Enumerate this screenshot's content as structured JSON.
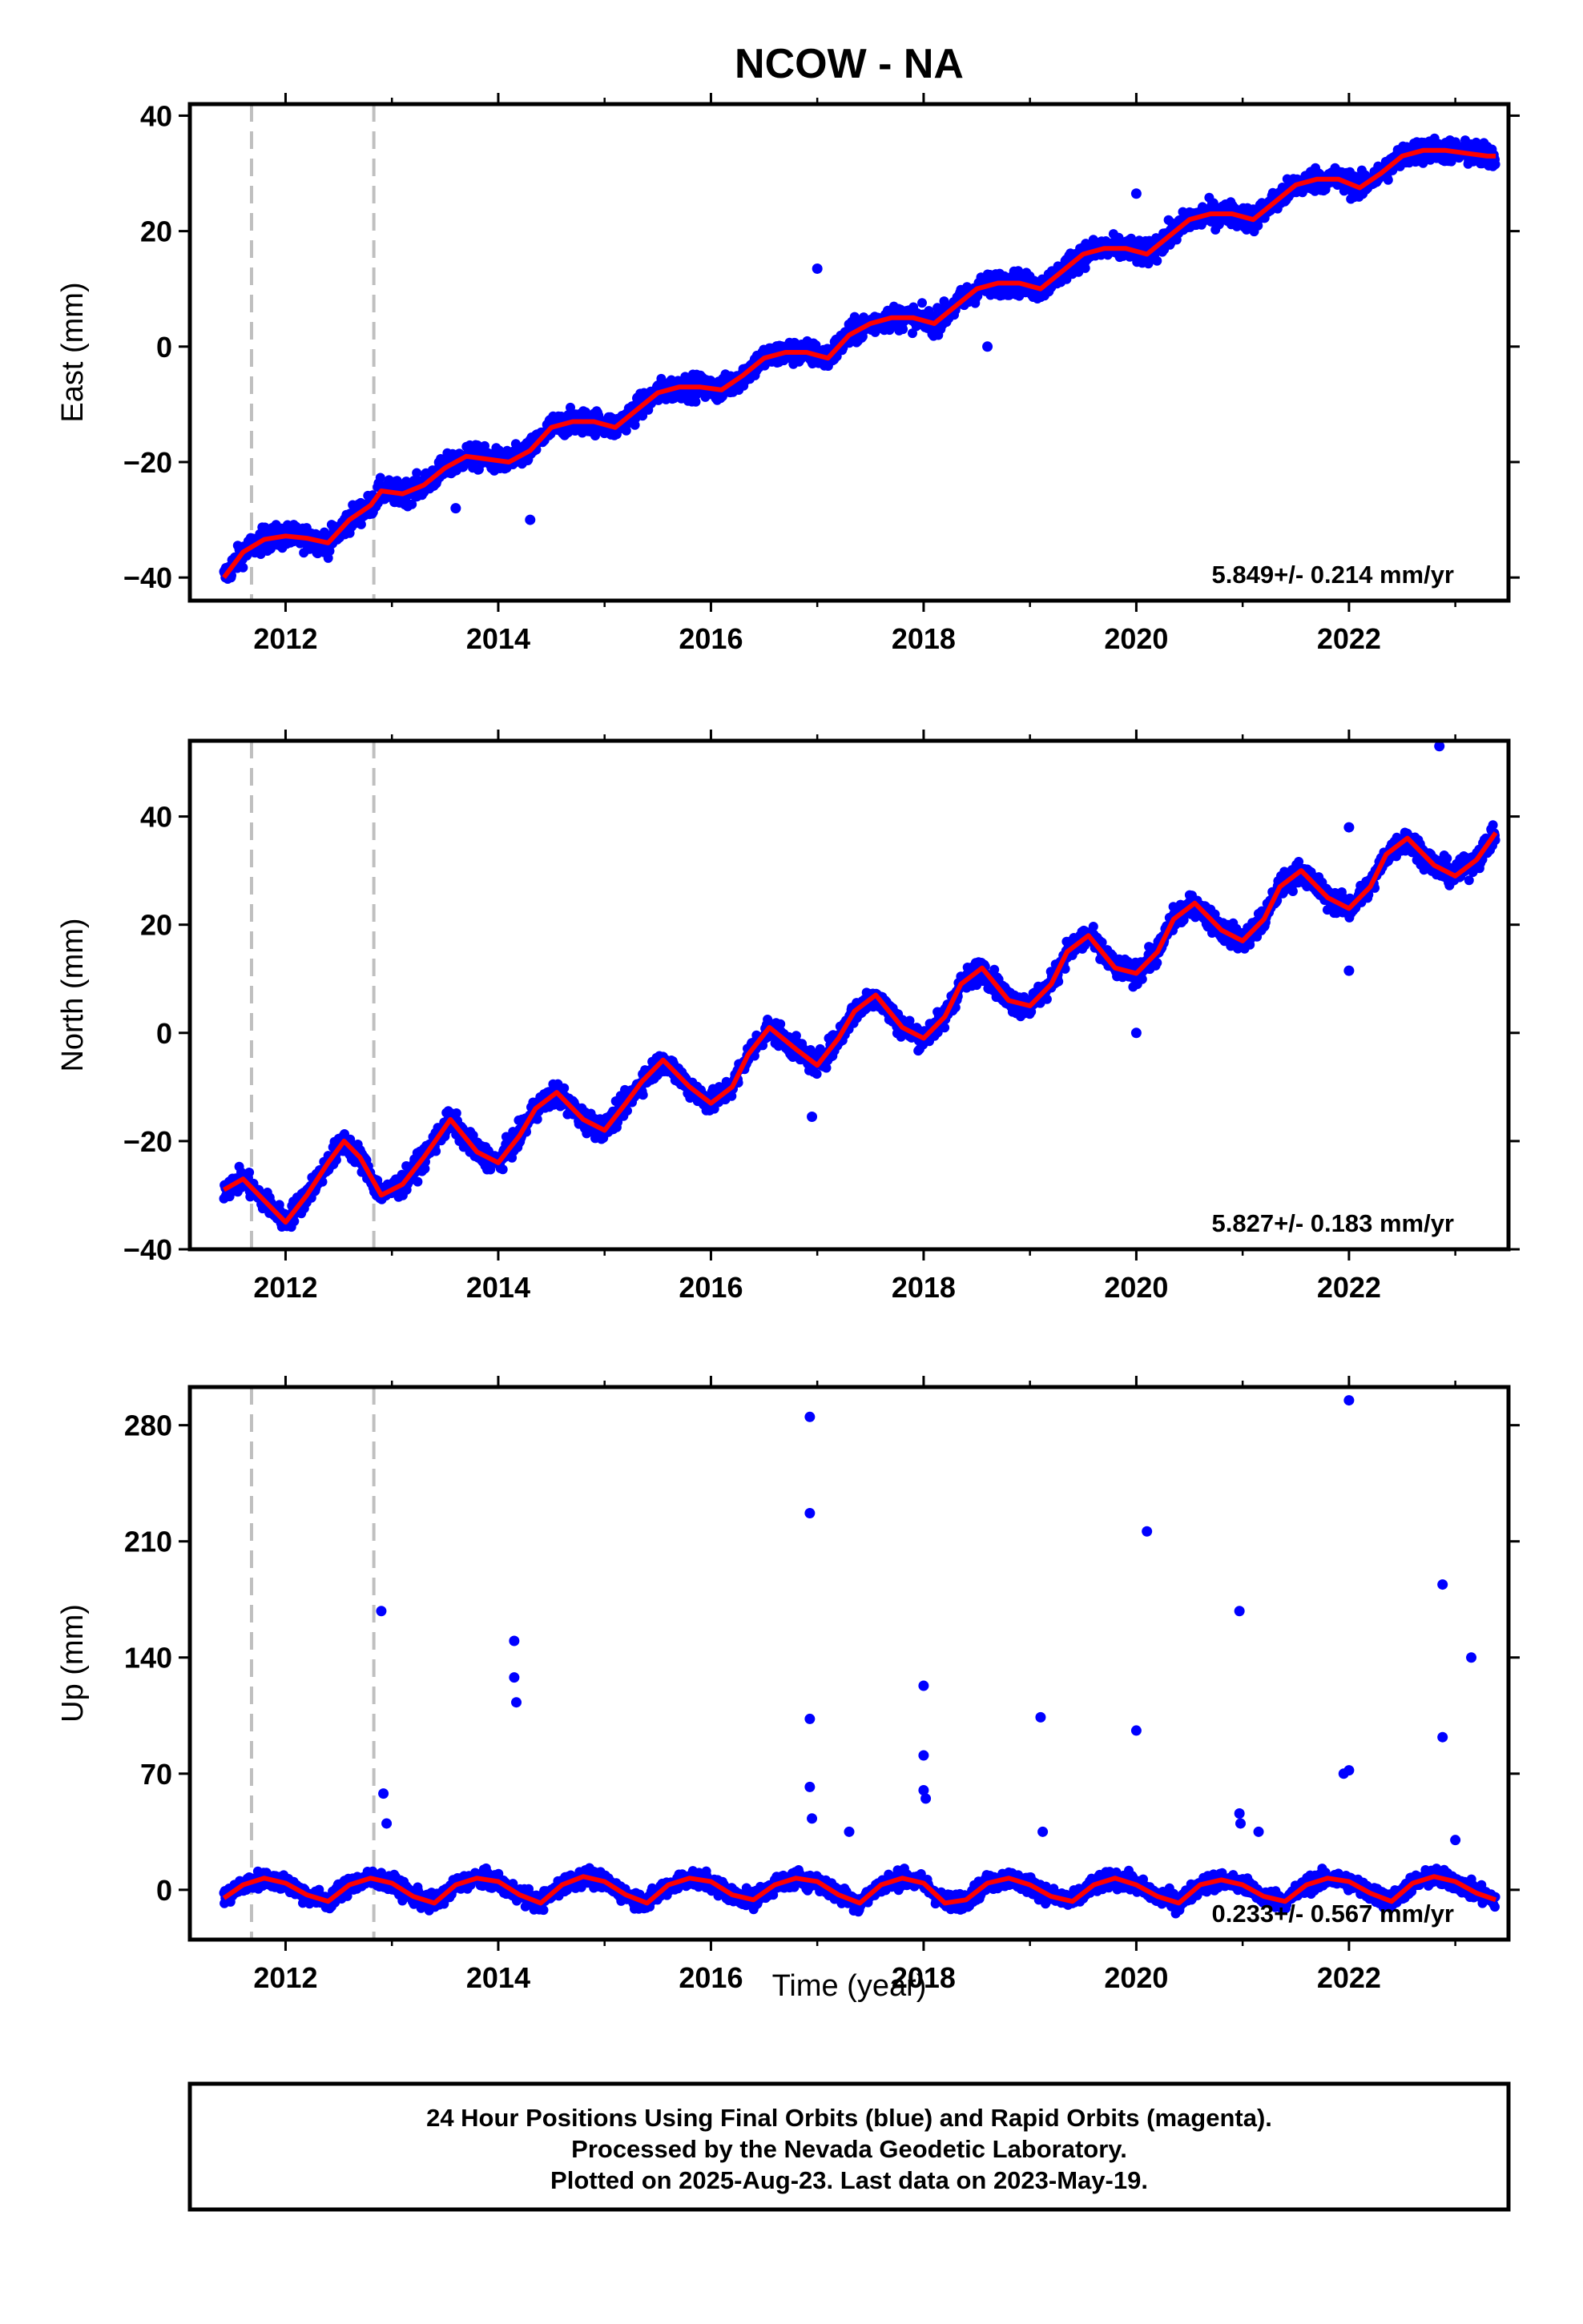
{
  "title": "NCOW - NA",
  "xlabel": "Time (year)",
  "caption": [
    "24 Hour Positions Using Final Orbits (blue) and Rapid Orbits (magenta).",
    "Processed by the Nevada Geodetic Laboratory.",
    "Plotted on 2025-Aug-23. Last data on 2023-May-19."
  ],
  "colors": {
    "points": "#0000ff",
    "model": "#ff0000",
    "offsets": "#bfbfbf",
    "frame": "#000000"
  },
  "chart_data": [
    {
      "type": "scatter",
      "ylabel": "East (mm)",
      "xlim": [
        2011.1,
        2023.5
      ],
      "ylim": [
        -44,
        42
      ],
      "xticks": [
        "2012",
        "2014",
        "2016",
        "2018",
        "2020",
        "2022"
      ],
      "yticks": [
        "−40",
        "−20",
        "0",
        "20",
        "40"
      ],
      "rate_label": "5.849+/- 0.214 mm/yr",
      "offset_lines": [
        2011.68,
        2012.83
      ],
      "trend": {
        "rate": 5.849,
        "value_at_2011_4": -40.0
      },
      "series": [
        {
          "name": "Final Orbits",
          "x": [
            2011.42,
            2011.6,
            2011.8,
            2012.0,
            2012.2,
            2012.4,
            2012.6,
            2012.8,
            2012.9,
            2013.1,
            2013.3,
            2013.5,
            2013.7,
            2013.9,
            2014.1,
            2014.3,
            2014.5,
            2014.7,
            2014.9,
            2015.1,
            2015.3,
            2015.5,
            2015.7,
            2015.9,
            2016.1,
            2016.3,
            2016.5,
            2016.7,
            2016.9,
            2017.1,
            2017.3,
            2017.5,
            2017.7,
            2017.9,
            2018.1,
            2018.3,
            2018.5,
            2018.7,
            2018.9,
            2019.1,
            2019.3,
            2019.5,
            2019.7,
            2019.9,
            2020.1,
            2020.3,
            2020.5,
            2020.7,
            2020.9,
            2021.1,
            2021.3,
            2021.5,
            2021.7,
            2021.9,
            2022.1,
            2022.3,
            2022.5,
            2022.7,
            2022.9,
            2023.1,
            2023.3,
            2023.38
          ],
          "y": [
            -40.0,
            -35.6,
            -33.4,
            -32.8,
            -33.2,
            -34.0,
            -30.0,
            -27.5,
            -25.0,
            -25.5,
            -24.0,
            -21.0,
            -19.0,
            -19.5,
            -20.0,
            -18.0,
            -14.0,
            -13.0,
            -13.0,
            -14.0,
            -11.0,
            -8.0,
            -7.0,
            -7.0,
            -7.5,
            -5.0,
            -2.0,
            -1.0,
            -1.0,
            -2.0,
            2.0,
            4.0,
            5.0,
            5.0,
            4.0,
            7.0,
            10.0,
            11.0,
            11.0,
            10.0,
            13.0,
            16.0,
            17.0,
            17.0,
            16.0,
            19.0,
            22.0,
            23.0,
            23.0,
            22.0,
            25.0,
            28.0,
            29.0,
            29.0,
            27.5,
            30.0,
            33.0,
            34.0,
            34.0,
            33.5,
            33.0,
            33.0
          ]
        }
      ],
      "outliers": [
        {
          "x": 2017.0,
          "y": 13.5
        },
        {
          "x": 2020.0,
          "y": 26.5
        },
        {
          "x": 2018.6,
          "y": 0.0
        },
        {
          "x": 2013.6,
          "y": -28.0
        },
        {
          "x": 2014.3,
          "y": -30.0
        }
      ]
    },
    {
      "type": "scatter",
      "ylabel": "North (mm)",
      "xlim": [
        2011.1,
        2023.5
      ],
      "ylim": [
        -40,
        54
      ],
      "xticks": [
        "2012",
        "2014",
        "2016",
        "2018",
        "2020",
        "2022"
      ],
      "yticks": [
        "−40",
        "−20",
        "0",
        "20",
        "40"
      ],
      "rate_label": "5.827+/- 0.183 mm/yr",
      "offset_lines": [
        2011.68,
        2012.83
      ],
      "trend": {
        "rate": 5.827,
        "value_at_2011_4": -31.0
      },
      "series": [
        {
          "name": "Final Orbits",
          "x": [
            2011.42,
            2011.6,
            2011.8,
            2012.0,
            2012.2,
            2012.4,
            2012.55,
            2012.7,
            2012.9,
            2013.1,
            2013.3,
            2013.55,
            2013.8,
            2014.0,
            2014.2,
            2014.35,
            2014.55,
            2014.8,
            2015.0,
            2015.2,
            2015.35,
            2015.55,
            2015.8,
            2016.0,
            2016.2,
            2016.35,
            2016.55,
            2016.8,
            2017.0,
            2017.2,
            2017.35,
            2017.55,
            2017.8,
            2018.0,
            2018.2,
            2018.35,
            2018.55,
            2018.8,
            2019.0,
            2019.2,
            2019.35,
            2019.55,
            2019.8,
            2020.0,
            2020.2,
            2020.35,
            2020.55,
            2020.8,
            2021.0,
            2021.2,
            2021.35,
            2021.55,
            2021.8,
            2022.0,
            2022.2,
            2022.35,
            2022.55,
            2022.8,
            2023.0,
            2023.2,
            2023.38
          ],
          "y": [
            -29.0,
            -27.0,
            -31.0,
            -35.0,
            -30.0,
            -24.0,
            -20.0,
            -23.0,
            -30.0,
            -28.0,
            -23.0,
            -16.0,
            -22.0,
            -24.0,
            -19.0,
            -14.0,
            -11.0,
            -16.0,
            -18.0,
            -13.0,
            -9.0,
            -5.0,
            -10.0,
            -13.0,
            -10.0,
            -4.0,
            1.0,
            -3.0,
            -6.0,
            -1.0,
            4.0,
            7.0,
            1.0,
            -1.0,
            3.0,
            9.0,
            12.0,
            6.0,
            5.0,
            9.0,
            15.0,
            18.0,
            12.0,
            11.0,
            15.0,
            21.0,
            24.0,
            19.0,
            17.0,
            21.0,
            27.0,
            30.0,
            25.0,
            23.0,
            27.0,
            33.0,
            36.0,
            31.0,
            29.0,
            32.0,
            37.0
          ]
        }
      ],
      "outliers": [
        {
          "x": 2022.85,
          "y": 53.0
        },
        {
          "x": 2022.0,
          "y": 11.5
        },
        {
          "x": 2022.0,
          "y": 38.0
        },
        {
          "x": 2020.0,
          "y": 0.0
        },
        {
          "x": 2016.95,
          "y": -15.5
        }
      ]
    },
    {
      "type": "scatter",
      "ylabel": "Up (mm)",
      "xlim": [
        2011.1,
        2023.5
      ],
      "ylim": [
        -30,
        303
      ],
      "xticks": [
        "2012",
        "2014",
        "2016",
        "2018",
        "2020",
        "2022"
      ],
      "yticks": [
        "0",
        "70",
        "140",
        "210",
        "280"
      ],
      "rate_label": "0.233+/- 0.567 mm/yr",
      "offset_lines": [
        2011.68,
        2012.83
      ],
      "trend": {
        "rate": 0.233,
        "value_at_2011_4": -3.0
      },
      "series": [
        {
          "name": "Final Orbits",
          "x": [
            2011.42,
            2011.6,
            2011.8,
            2012.0,
            2012.2,
            2012.4,
            2012.6,
            2012.8,
            2013.0,
            2013.2,
            2013.4,
            2013.6,
            2013.8,
            2014.0,
            2014.2,
            2014.4,
            2014.6,
            2014.8,
            2015.0,
            2015.2,
            2015.4,
            2015.6,
            2015.8,
            2016.0,
            2016.2,
            2016.4,
            2016.6,
            2016.8,
            2017.0,
            2017.2,
            2017.4,
            2017.6,
            2017.8,
            2018.0,
            2018.2,
            2018.4,
            2018.6,
            2018.8,
            2019.0,
            2019.2,
            2019.4,
            2019.6,
            2019.8,
            2020.0,
            2020.2,
            2020.4,
            2020.6,
            2020.8,
            2021.0,
            2021.2,
            2021.4,
            2021.6,
            2021.8,
            2022.0,
            2022.2,
            2022.4,
            2022.6,
            2022.8,
            2023.0,
            2023.2,
            2023.38
          ],
          "y": [
            -5,
            3,
            7,
            4,
            -3,
            -7,
            3,
            7,
            4,
            -4,
            -8,
            3,
            7,
            5,
            -3,
            -8,
            3,
            8,
            5,
            -3,
            -8,
            3,
            7,
            5,
            -3,
            -6,
            3,
            7,
            5,
            -3,
            -8,
            3,
            7,
            4,
            -8,
            -6,
            4,
            7,
            3,
            -4,
            -7,
            3,
            7,
            3,
            -4,
            -8,
            3,
            6,
            3,
            -4,
            -7,
            3,
            7,
            5,
            -2,
            -7,
            4,
            8,
            5,
            -2,
            -6
          ]
        }
      ],
      "outliers": [
        {
          "x": 2012.9,
          "y": 168
        },
        {
          "x": 2012.92,
          "y": 58
        },
        {
          "x": 2012.95,
          "y": 40
        },
        {
          "x": 2014.15,
          "y": 150
        },
        {
          "x": 2014.15,
          "y": 128
        },
        {
          "x": 2014.17,
          "y": 113
        },
        {
          "x": 2016.93,
          "y": 285
        },
        {
          "x": 2016.93,
          "y": 227
        },
        {
          "x": 2016.93,
          "y": 103
        },
        {
          "x": 2016.93,
          "y": 62
        },
        {
          "x": 2016.95,
          "y": 43
        },
        {
          "x": 2018.0,
          "y": 123
        },
        {
          "x": 2018.0,
          "y": 81
        },
        {
          "x": 2018.0,
          "y": 60
        },
        {
          "x": 2018.02,
          "y": 55
        },
        {
          "x": 2019.1,
          "y": 104
        },
        {
          "x": 2019.12,
          "y": 35
        },
        {
          "x": 2020.0,
          "y": 96
        },
        {
          "x": 2020.1,
          "y": 216
        },
        {
          "x": 2020.97,
          "y": 168
        },
        {
          "x": 2020.97,
          "y": 46
        },
        {
          "x": 2021.15,
          "y": 35
        },
        {
          "x": 2020.98,
          "y": 40
        },
        {
          "x": 2022.0,
          "y": 295
        },
        {
          "x": 2021.95,
          "y": 70
        },
        {
          "x": 2022.0,
          "y": 72
        },
        {
          "x": 2022.88,
          "y": 184
        },
        {
          "x": 2022.88,
          "y": 92
        },
        {
          "x": 2023.15,
          "y": 140
        },
        {
          "x": 2023.0,
          "y": 30
        },
        {
          "x": 2017.3,
          "y": 35
        }
      ]
    }
  ]
}
